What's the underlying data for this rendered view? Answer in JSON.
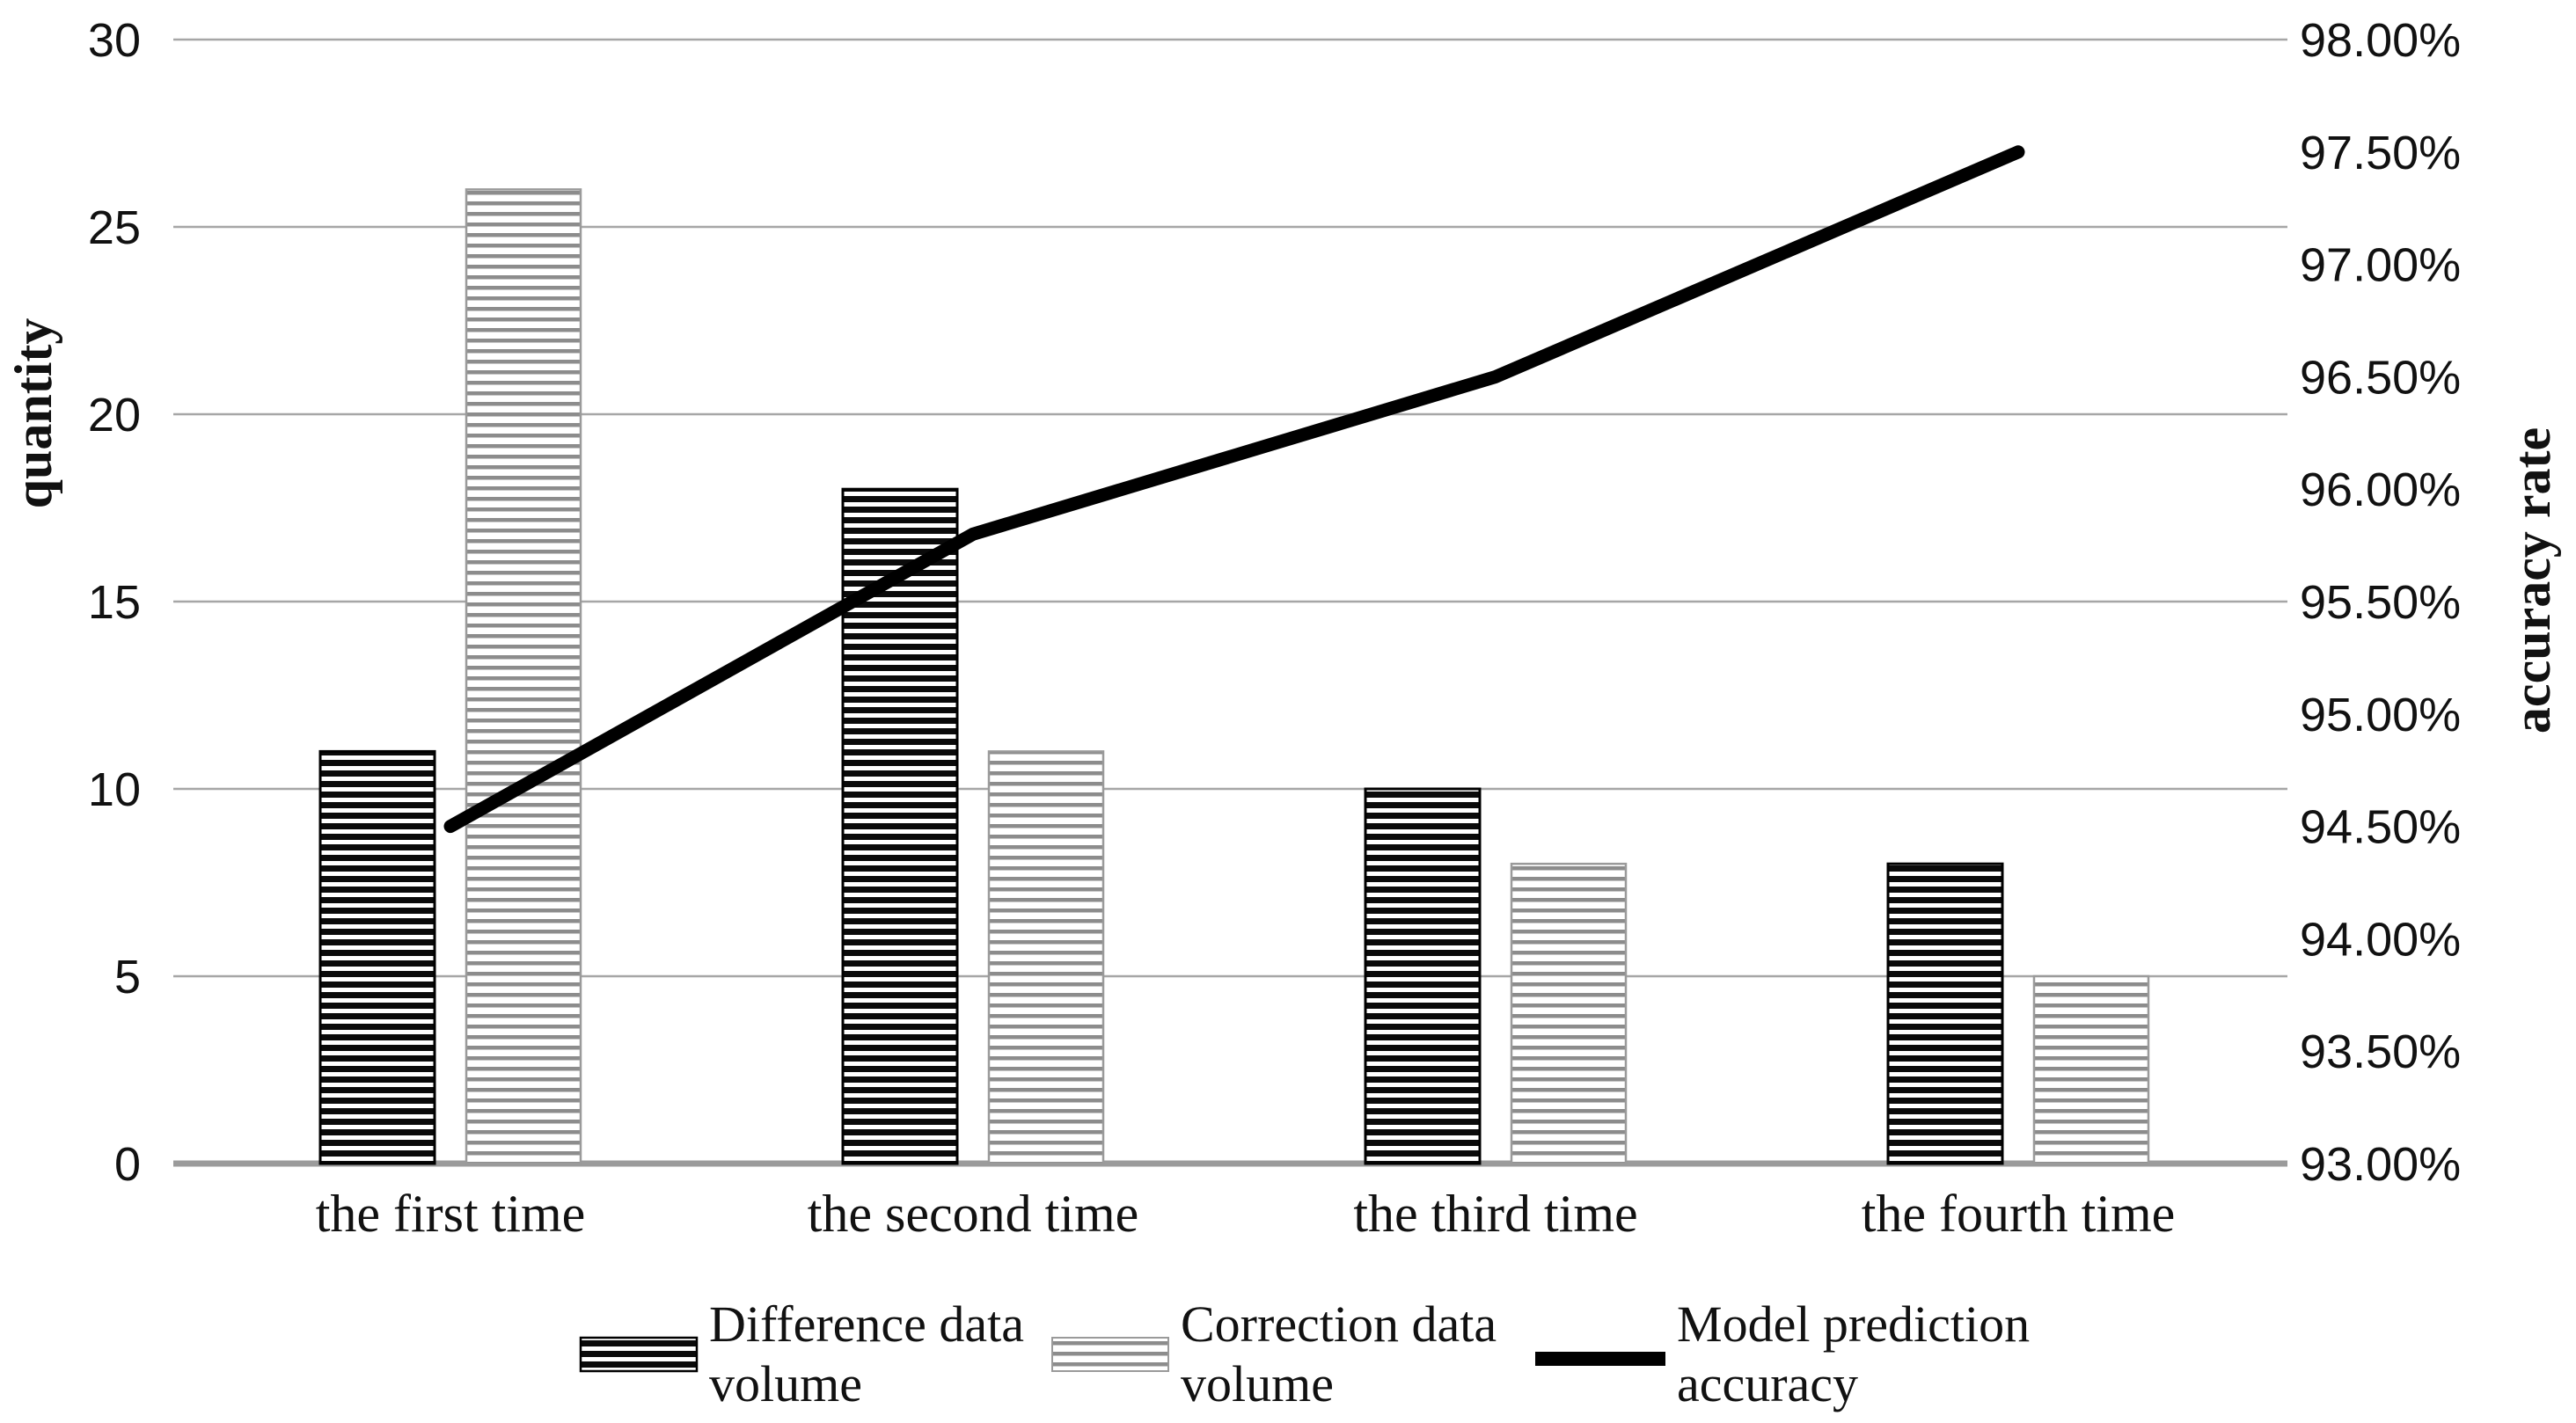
{
  "figure": {
    "background": "#ffffff"
  },
  "chart_data": {
    "type": "bar+line",
    "title": "",
    "categories": [
      "the first time",
      "the second time",
      "the third time",
      "the fourth time"
    ],
    "series": [
      {
        "name": "Difference data volume",
        "kind": "bar",
        "axis": "left",
        "style": "dark-hatch",
        "values": [
          11,
          18,
          10,
          8
        ]
      },
      {
        "name": "Correction data volume",
        "kind": "bar",
        "axis": "left",
        "style": "light-hatch",
        "values": [
          26,
          11,
          8,
          5
        ]
      },
      {
        "name": "Model prediction accuracy",
        "kind": "line",
        "axis": "right",
        "unit": "%",
        "values": [
          94.5,
          95.8,
          96.5,
          97.5
        ]
      }
    ],
    "left_axis": {
      "title": "quantity",
      "min": 0,
      "max": 30,
      "step": 5,
      "tick_labels": [
        "0",
        "5",
        "10",
        "15",
        "20",
        "25",
        "30"
      ]
    },
    "right_axis": {
      "title": "accuracy rate",
      "min": 93,
      "max": 98,
      "step": 0.5,
      "tick_labels": [
        "93.00%",
        "93.50%",
        "94.00%",
        "94.50%",
        "95.00%",
        "95.50%",
        "96.00%",
        "96.50%",
        "97.00%",
        "97.50%",
        "98.00%"
      ]
    },
    "grid": true,
    "legend_position": "bottom"
  },
  "legend": {
    "items": [
      {
        "swatch": "dark-hatch-swatch",
        "line1": "Difference data",
        "line2": "volume"
      },
      {
        "swatch": "light-hatch-swatch",
        "line1": "Correction data",
        "line2": "volume"
      },
      {
        "swatch": "line-swatch",
        "line1": "Model prediction",
        "line2": "accuracy"
      }
    ]
  },
  "colors": {
    "grid": "#a6a6a6",
    "baseline": "#9b9b9b",
    "line_series": "#000000",
    "dark_bar_stripe": "#0a0a0a",
    "dark_bar_border": "#000000",
    "light_bar_stripe": "#8c8c8c",
    "light_bar_border": "#9a9a9a",
    "text": "#111111"
  }
}
